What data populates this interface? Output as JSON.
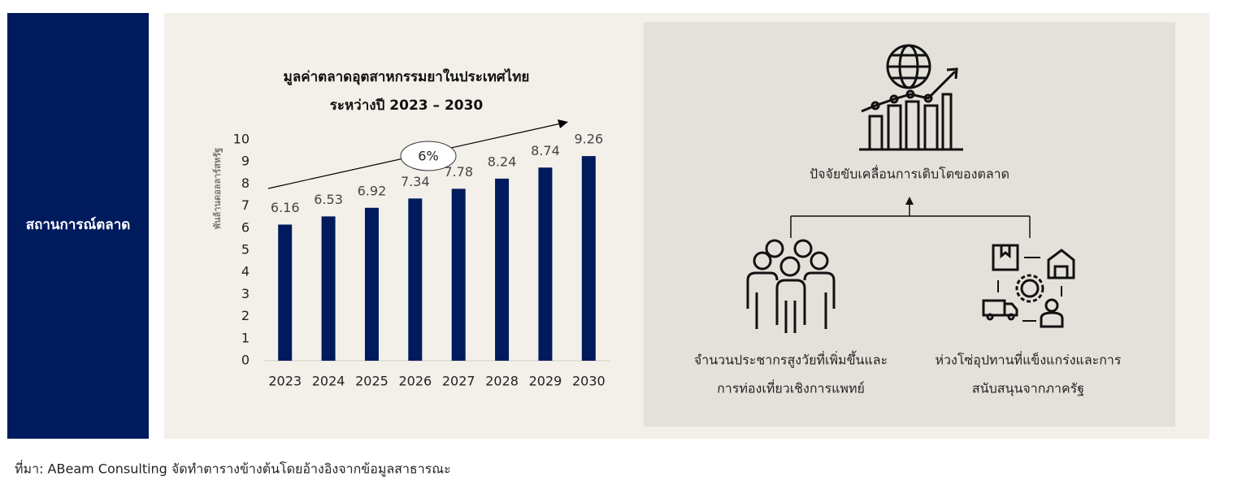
{
  "sidebar": {
    "label": "สถานการณ์ตลาด"
  },
  "chart_data": {
    "type": "bar",
    "title": "มูลค่าตลาดอุตสาหกรรมยาในประเทศไทย",
    "subtitle": "ระหว่างปี 2023 – 2030",
    "ylabel": "พันล้านดอลลาร์สหรัฐ",
    "annotation": "6%",
    "categories": [
      "2023",
      "2024",
      "2025",
      "2026",
      "2027",
      "2028",
      "2029",
      "2030"
    ],
    "values": [
      6.16,
      6.53,
      6.92,
      7.34,
      7.78,
      8.24,
      8.74,
      9.26
    ],
    "color": "#001a5e",
    "ylim": [
      0,
      10
    ],
    "yticks": [
      0,
      1,
      2,
      3,
      4,
      5,
      6,
      7,
      8,
      9,
      10
    ],
    "grid": false
  },
  "drivers": {
    "title": "ปัจจัยขับเคลื่อนการเติบโตของตลาด",
    "items": [
      {
        "lines": [
          "จำนวนประชากรสูงวัยที่เพิ่มขึ้นและ",
          "การท่องเที่ยวเชิงการแพทย์"
        ]
      },
      {
        "lines": [
          "ห่วงโซ่อุปทานที่แข็งแกร่งและการ",
          "สนับสนุนจากภาครัฐ"
        ]
      }
    ]
  },
  "source": "ที่มา: ABeam Consulting จัดทำตารางข้างต้นโดยอ้างอิงจากข้อมูลสาธารณะ"
}
